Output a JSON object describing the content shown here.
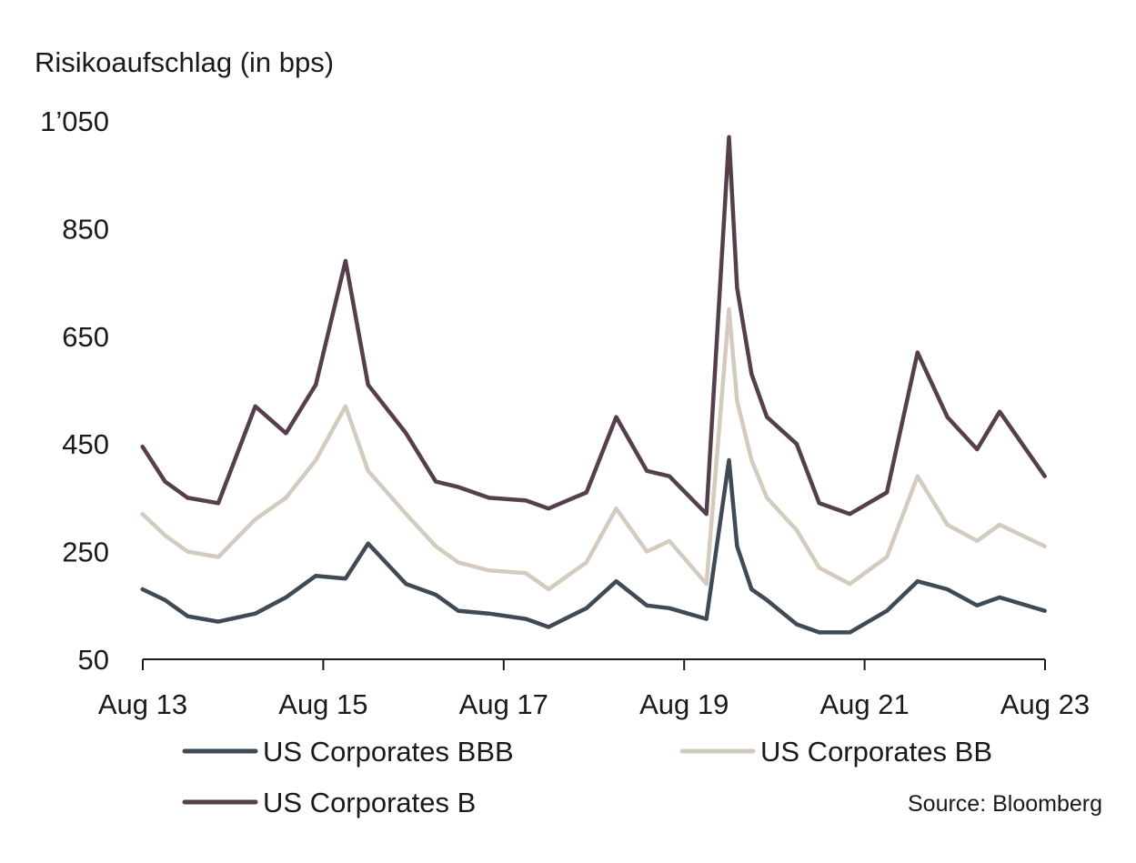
{
  "chart_data": {
    "type": "line",
    "ylabel": "Risikoaufschlag (in bps)",
    "ylim": [
      50,
      1050
    ],
    "yticks": [
      50,
      250,
      450,
      650,
      850,
      1050
    ],
    "ytick_labels": [
      "50",
      "250",
      "450",
      "650",
      "850",
      "1’050"
    ],
    "xlim": [
      2013.583,
      2023.583
    ],
    "xticks": [
      2013.583,
      2015.583,
      2017.583,
      2019.583,
      2021.583,
      2023.583
    ],
    "xtick_labels": [
      "Aug 13",
      "Aug 15",
      "Aug 17",
      "Aug 19",
      "Aug 21",
      "Aug 23"
    ],
    "grid": false,
    "legend_position": "bottom",
    "source": "Source: Bloomberg",
    "series": [
      {
        "name": "US Corporates BBB",
        "color": "#3f4a54",
        "x": [
          2013.58,
          2013.83,
          2014.08,
          2014.42,
          2014.83,
          2015.17,
          2015.5,
          2015.83,
          2016.08,
          2016.5,
          2016.83,
          2017.08,
          2017.42,
          2017.83,
          2018.08,
          2018.5,
          2018.83,
          2019.17,
          2019.42,
          2019.83,
          2020.08,
          2020.17,
          2020.33,
          2020.5,
          2020.83,
          2021.08,
          2021.42,
          2021.83,
          2022.17,
          2022.5,
          2022.83,
          2023.08,
          2023.58
        ],
        "y": [
          180,
          160,
          130,
          120,
          135,
          165,
          205,
          200,
          265,
          190,
          170,
          140,
          135,
          125,
          110,
          145,
          195,
          150,
          145,
          125,
          420,
          260,
          180,
          160,
          115,
          100,
          100,
          140,
          195,
          180,
          150,
          165,
          140
        ]
      },
      {
        "name": "US Corporates BB",
        "color": "#d4cbbf",
        "x": [
          2013.58,
          2013.83,
          2014.08,
          2014.42,
          2014.83,
          2015.17,
          2015.5,
          2015.83,
          2016.08,
          2016.5,
          2016.83,
          2017.08,
          2017.42,
          2017.83,
          2018.08,
          2018.5,
          2018.83,
          2019.17,
          2019.42,
          2019.83,
          2020.08,
          2020.17,
          2020.33,
          2020.5,
          2020.83,
          2021.08,
          2021.42,
          2021.83,
          2022.17,
          2022.5,
          2022.83,
          2023.08,
          2023.58
        ],
        "y": [
          320,
          280,
          250,
          240,
          310,
          350,
          420,
          520,
          400,
          320,
          260,
          230,
          215,
          210,
          180,
          230,
          330,
          250,
          270,
          190,
          700,
          530,
          420,
          350,
          290,
          220,
          190,
          240,
          390,
          300,
          270,
          300,
          260
        ]
      },
      {
        "name": "US Corporates B",
        "color": "#553f4c",
        "x": [
          2013.58,
          2013.83,
          2014.08,
          2014.42,
          2014.83,
          2015.17,
          2015.5,
          2015.83,
          2016.08,
          2016.5,
          2016.83,
          2017.08,
          2017.42,
          2017.83,
          2018.08,
          2018.5,
          2018.83,
          2019.17,
          2019.42,
          2019.83,
          2020.08,
          2020.17,
          2020.33,
          2020.5,
          2020.83,
          2021.08,
          2021.42,
          2021.83,
          2022.17,
          2022.5,
          2022.83,
          2023.08,
          2023.58
        ],
        "y": [
          445,
          380,
          350,
          340,
          520,
          470,
          560,
          790,
          560,
          470,
          380,
          370,
          350,
          345,
          330,
          360,
          500,
          400,
          390,
          320,
          1020,
          740,
          580,
          500,
          450,
          340,
          320,
          360,
          620,
          500,
          440,
          510,
          390
        ]
      }
    ]
  }
}
